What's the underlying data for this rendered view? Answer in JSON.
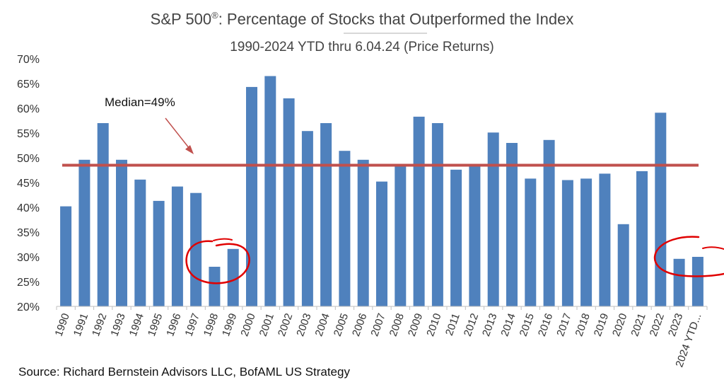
{
  "header": {
    "title_main": "S&P 500",
    "title_reg": "®",
    "title_rest": ":  Percentage of Stocks that Outperformed the Index",
    "subtitle": "1990-2024 YTD thru 6.04.24  (Price Returns)"
  },
  "source": "Source: Richard Bernstein Advisors LLC, BofAML US Strategy",
  "chart_data": {
    "type": "bar",
    "title": "S&P 500®:  Percentage of Stocks that Outperformed the Index",
    "subtitle": "1990-2024 YTD thru 6.04.24  (Price Returns)",
    "categories": [
      "1990",
      "1991",
      "1992",
      "1993",
      "1994",
      "1995",
      "1996",
      "1997",
      "1998",
      "1999",
      "2000",
      "2001",
      "2002",
      "2003",
      "2004",
      "2005",
      "2006",
      "2007",
      "2008",
      "2009",
      "2010",
      "2011",
      "2012",
      "2013",
      "2014",
      "2015",
      "2016",
      "2017",
      "2018",
      "2019",
      "2020",
      "2021",
      "2022",
      "2023",
      "2024 YTD..."
    ],
    "values": [
      40.2,
      49.6,
      57.0,
      49.6,
      45.6,
      41.3,
      44.2,
      42.9,
      28.0,
      31.6,
      64.3,
      66.5,
      62.0,
      55.4,
      57.0,
      51.4,
      49.6,
      45.2,
      48.5,
      58.3,
      57.0,
      47.6,
      48.5,
      55.1,
      53.0,
      45.8,
      53.6,
      45.5,
      45.8,
      46.8,
      36.6,
      47.3,
      59.1,
      29.6,
      30.0
    ],
    "ylim": [
      20,
      70
    ],
    "y_ticks": [
      "20%",
      "25%",
      "30%",
      "35%",
      "40%",
      "45%",
      "50%",
      "55%",
      "60%",
      "65%",
      "70%"
    ],
    "median": {
      "value": 48.5,
      "label": "Median=49%"
    },
    "colors": {
      "bar": "#4F81BD",
      "median_line": "#C0504D",
      "highlight": "#E00000"
    },
    "grid": false,
    "legend": "none"
  }
}
